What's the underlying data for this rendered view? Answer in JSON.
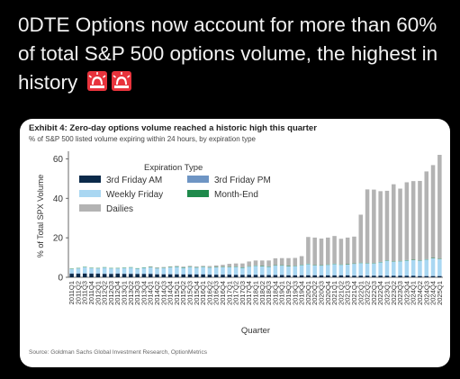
{
  "headline": "0DTE Options now account for more than 60% of total S&P 500 options volume, the highest in history",
  "emoji_icons": [
    "police-light-icon",
    "police-light-icon"
  ],
  "colors": {
    "background": "#000000",
    "card": "#ffffff",
    "third_friday_am": "#0b2a4a",
    "third_friday_pm": "#6e95c4",
    "weekly_friday": "#a9d7f2",
    "month_end": "#1f8a4c",
    "dailies": "#b3b3b3",
    "siren": "#e8333c"
  },
  "chart_data": {
    "type": "bar",
    "stacked": true,
    "title": "Exhibit 4: Zero-day options volume reached a historic high this quarter",
    "subtitle": "% of S&P 500 listed volume expiring within 24 hours, by expiration type",
    "xlabel": "Quarter",
    "ylabel": "% of Total SPX Volume",
    "ylim": [
      0,
      62
    ],
    "yticks": [
      0,
      20,
      40,
      60
    ],
    "grid": false,
    "legend_title": "Expiration Type",
    "legend_position": "top-left",
    "source": "Source: Goldman Sachs Global Investment Research, OptionMetrics",
    "categories": [
      "2011Q1",
      "2011Q2",
      "2011Q3",
      "2011Q4",
      "2012Q1",
      "2012Q2",
      "2012Q3",
      "2012Q4",
      "2013Q1",
      "2013Q2",
      "2013Q3",
      "2013Q4",
      "2014Q1",
      "2014Q2",
      "2014Q3",
      "2014Q4",
      "2015Q1",
      "2015Q2",
      "2015Q3",
      "2015Q4",
      "2016Q1",
      "2016Q2",
      "2016Q3",
      "2016Q4",
      "2017Q1",
      "2017Q2",
      "2017Q3",
      "2017Q4",
      "2018Q1",
      "2018Q2",
      "2018Q3",
      "2018Q4",
      "2019Q1",
      "2019Q2",
      "2019Q3",
      "2019Q4",
      "2020Q1",
      "2020Q2",
      "2020Q3",
      "2020Q4",
      "2021Q1",
      "2021Q2",
      "2021Q3",
      "2021Q4",
      "2022Q1",
      "2022Q2",
      "2022Q3",
      "2022Q4",
      "2023Q1",
      "2023Q2",
      "2023Q3",
      "2023Q4",
      "2024Q1",
      "2024Q2",
      "2024Q3",
      "2024Q4",
      "2025Q1"
    ],
    "series": [
      {
        "name": "3rd Friday AM",
        "values": [
          1.8,
          1.8,
          1.9,
          1.8,
          1.8,
          1.7,
          1.7,
          1.8,
          1.7,
          1.7,
          1.6,
          1.6,
          1.6,
          1.5,
          1.5,
          1.5,
          1.5,
          1.4,
          1.4,
          1.4,
          1.4,
          1.3,
          1.3,
          1.3,
          1.3,
          1.2,
          1.2,
          1.2,
          1.2,
          1.1,
          1.1,
          1.1,
          1.1,
          1.0,
          1.0,
          1.0,
          1.0,
          1.0,
          0.9,
          0.9,
          0.9,
          0.9,
          0.9,
          0.8,
          0.8,
          0.8,
          0.8,
          0.8,
          0.7,
          0.7,
          0.7,
          0.7,
          0.7,
          0.6,
          0.6,
          0.6,
          0.6
        ]
      },
      {
        "name": "3rd Friday PM",
        "values": [
          0.2,
          0.2,
          0.2,
          0.2,
          0.2,
          0.2,
          0.2,
          0.2,
          0.2,
          0.2,
          0.2,
          0.2,
          0.2,
          0.2,
          0.2,
          0.2,
          0.2,
          0.2,
          0.2,
          0.2,
          0.2,
          0.2,
          0.2,
          0.2,
          0.2,
          0.2,
          0.2,
          0.2,
          0.2,
          0.2,
          0.2,
          0.2,
          0.2,
          0.2,
          0.2,
          0.2,
          0.2,
          0.2,
          0.2,
          0.2,
          0.2,
          0.2,
          0.2,
          0.2,
          0.2,
          0.2,
          0.2,
          0.2,
          0.2,
          0.2,
          0.2,
          0.2,
          0.2,
          0.2,
          0.2,
          0.2,
          0.2
        ]
      },
      {
        "name": "Weekly Friday",
        "values": [
          2.2,
          2.5,
          3.0,
          2.6,
          2.5,
          3.0,
          2.6,
          2.5,
          2.8,
          3.0,
          2.6,
          3.0,
          3.2,
          2.8,
          3.0,
          3.3,
          3.6,
          3.2,
          3.6,
          3.3,
          3.6,
          3.4,
          3.5,
          3.6,
          3.6,
          3.8,
          3.4,
          4.0,
          4.4,
          4.2,
          4.0,
          4.6,
          4.6,
          4.3,
          4.4,
          4.9,
          5.5,
          4.8,
          4.8,
          5.2,
          5.6,
          5.2,
          5.3,
          5.8,
          6.2,
          6.0,
          6.0,
          6.6,
          7.5,
          7.0,
          7.2,
          7.6,
          7.8,
          7.6,
          8.2,
          8.8,
          8.4
        ]
      },
      {
        "name": "Month-End",
        "values": [
          0.2,
          0.2,
          0.2,
          0.2,
          0.2,
          0.2,
          0.2,
          0.2,
          0.2,
          0.2,
          0.2,
          0.2,
          0.2,
          0.2,
          0.2,
          0.2,
          0.2,
          0.2,
          0.2,
          0.2,
          0.2,
          0.2,
          0.2,
          0.2,
          0.2,
          0.2,
          0.2,
          0.2,
          0.2,
          0.2,
          0.2,
          0.2,
          0.2,
          0.2,
          0.2,
          0.2,
          0.2,
          0.2,
          0.2,
          0.2,
          0.2,
          0.2,
          0.2,
          0.2,
          0.2,
          0.2,
          0.2,
          0.2,
          0.2,
          0.2,
          0.2,
          0.2,
          0.2,
          0.2,
          0.2,
          0.2,
          0.2
        ]
      },
      {
        "name": "Dailies",
        "values": [
          0,
          0,
          0,
          0,
          0,
          0,
          0,
          0,
          0,
          0,
          0,
          0,
          0.3,
          0.3,
          0.3,
          0.3,
          0.3,
          0.4,
          0.4,
          0.4,
          0.4,
          0.6,
          0.8,
          1.0,
          1.5,
          1.6,
          2.0,
          2.4,
          2.5,
          2.8,
          3.0,
          3.5,
          3.6,
          4.0,
          4.0,
          4.4,
          13.5,
          13.9,
          13.5,
          13.6,
          14.0,
          13.0,
          13.5,
          13.6,
          24.3,
          37.3,
          37.2,
          35.8,
          35.2,
          39.0,
          36.6,
          39.4,
          39.8,
          40.2,
          44.4,
          47.0,
          52.6
        ]
      }
    ]
  }
}
